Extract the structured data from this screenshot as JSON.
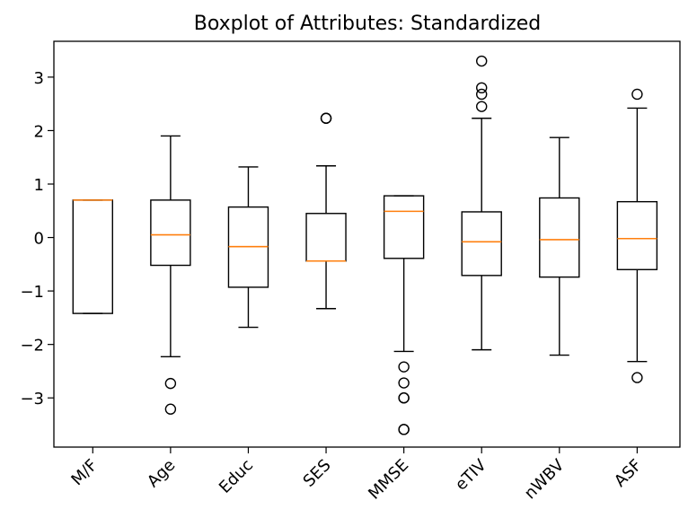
{
  "chart_data": {
    "type": "boxplot",
    "title": "Boxplot of Attributes: Standardized",
    "xlabel": "",
    "ylabel": "",
    "ylim": [
      -3.92,
      3.67
    ],
    "yticks": [
      -3,
      -2,
      -1,
      0,
      1,
      2,
      3
    ],
    "grid": false,
    "legend": "none",
    "colors": {
      "box": "#000000",
      "median": "#ff7f0e",
      "background": "#ffffff"
    },
    "categories": [
      "M/F",
      "Age",
      "Educ",
      "SES",
      "MMSE",
      "eTIV",
      "nWBV",
      "ASF"
    ],
    "boxes": [
      {
        "name": "M/F",
        "whislo": -1.42,
        "q1": -1.42,
        "med": 0.7,
        "q3": 0.7,
        "whishi": 0.7,
        "fliers": []
      },
      {
        "name": "Age",
        "whislo": -2.23,
        "q1": -0.52,
        "med": 0.05,
        "q3": 0.7,
        "whishi": 1.9,
        "fliers": [
          -2.73,
          -3.21
        ]
      },
      {
        "name": "Educ",
        "whislo": -1.68,
        "q1": -0.93,
        "med": -0.17,
        "q3": 0.57,
        "whishi": 1.32,
        "fliers": []
      },
      {
        "name": "SES",
        "whislo": -1.33,
        "q1": -0.44,
        "med": -0.44,
        "q3": 0.45,
        "whishi": 1.34,
        "fliers": [
          2.23,
          2.23
        ]
      },
      {
        "name": "MMSE",
        "whislo": -2.13,
        "q1": -0.39,
        "med": 0.49,
        "q3": 0.78,
        "whishi": 0.78,
        "fliers": [
          -2.42,
          -2.72,
          -3.0,
          -3.0,
          -3.59,
          -3.59
        ]
      },
      {
        "name": "eTIV",
        "whislo": -2.1,
        "q1": -0.71,
        "med": -0.08,
        "q3": 0.48,
        "whishi": 2.23,
        "fliers": [
          2.45,
          2.68,
          2.8,
          3.3
        ]
      },
      {
        "name": "nWBV",
        "whislo": -2.2,
        "q1": -0.74,
        "med": -0.04,
        "q3": 0.74,
        "whishi": 1.87,
        "fliers": []
      },
      {
        "name": "ASF",
        "whislo": -2.32,
        "q1": -0.6,
        "med": -0.02,
        "q3": 0.67,
        "whishi": 2.42,
        "fliers": [
          2.68,
          -2.62
        ]
      }
    ]
  }
}
